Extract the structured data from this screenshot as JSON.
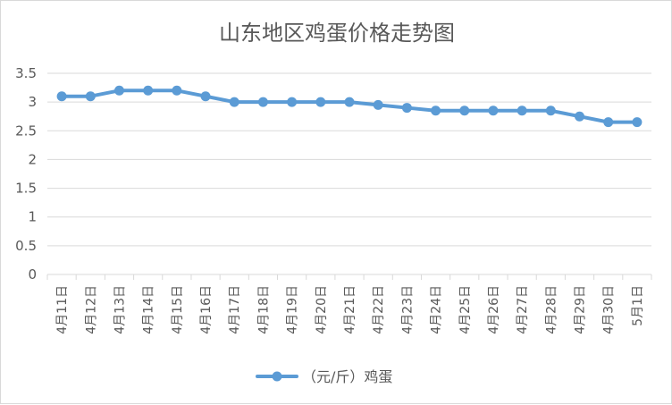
{
  "chart_data": {
    "type": "line",
    "title": "山东地区鸡蛋价格走势图",
    "categories": [
      "4月11日",
      "4月12日",
      "4月13日",
      "4月14日",
      "4月15日",
      "4月16日",
      "4月17日",
      "4月18日",
      "4月19日",
      "4月20日",
      "4月21日",
      "4月22日",
      "4月23日",
      "4月24日",
      "4月25日",
      "4月26日",
      "4月27日",
      "4月28日",
      "4月29日",
      "4月30日",
      "5月1日"
    ],
    "series": [
      {
        "name": "（元/斤）鸡蛋",
        "color": "#5b9bd5",
        "values": [
          3.1,
          3.1,
          3.2,
          3.2,
          3.2,
          3.1,
          3.0,
          3.0,
          3.0,
          3.0,
          3.0,
          2.95,
          2.9,
          2.85,
          2.85,
          2.85,
          2.85,
          2.85,
          2.75,
          2.65,
          2.65
        ]
      }
    ],
    "ylim": [
      0,
      3.5
    ],
    "yticks": [
      "0",
      "0.5",
      "1",
      "1.5",
      "2",
      "2.5",
      "3",
      "3.5"
    ],
    "xlabel": "",
    "ylabel": "",
    "grid": true,
    "legend": "bottom"
  }
}
